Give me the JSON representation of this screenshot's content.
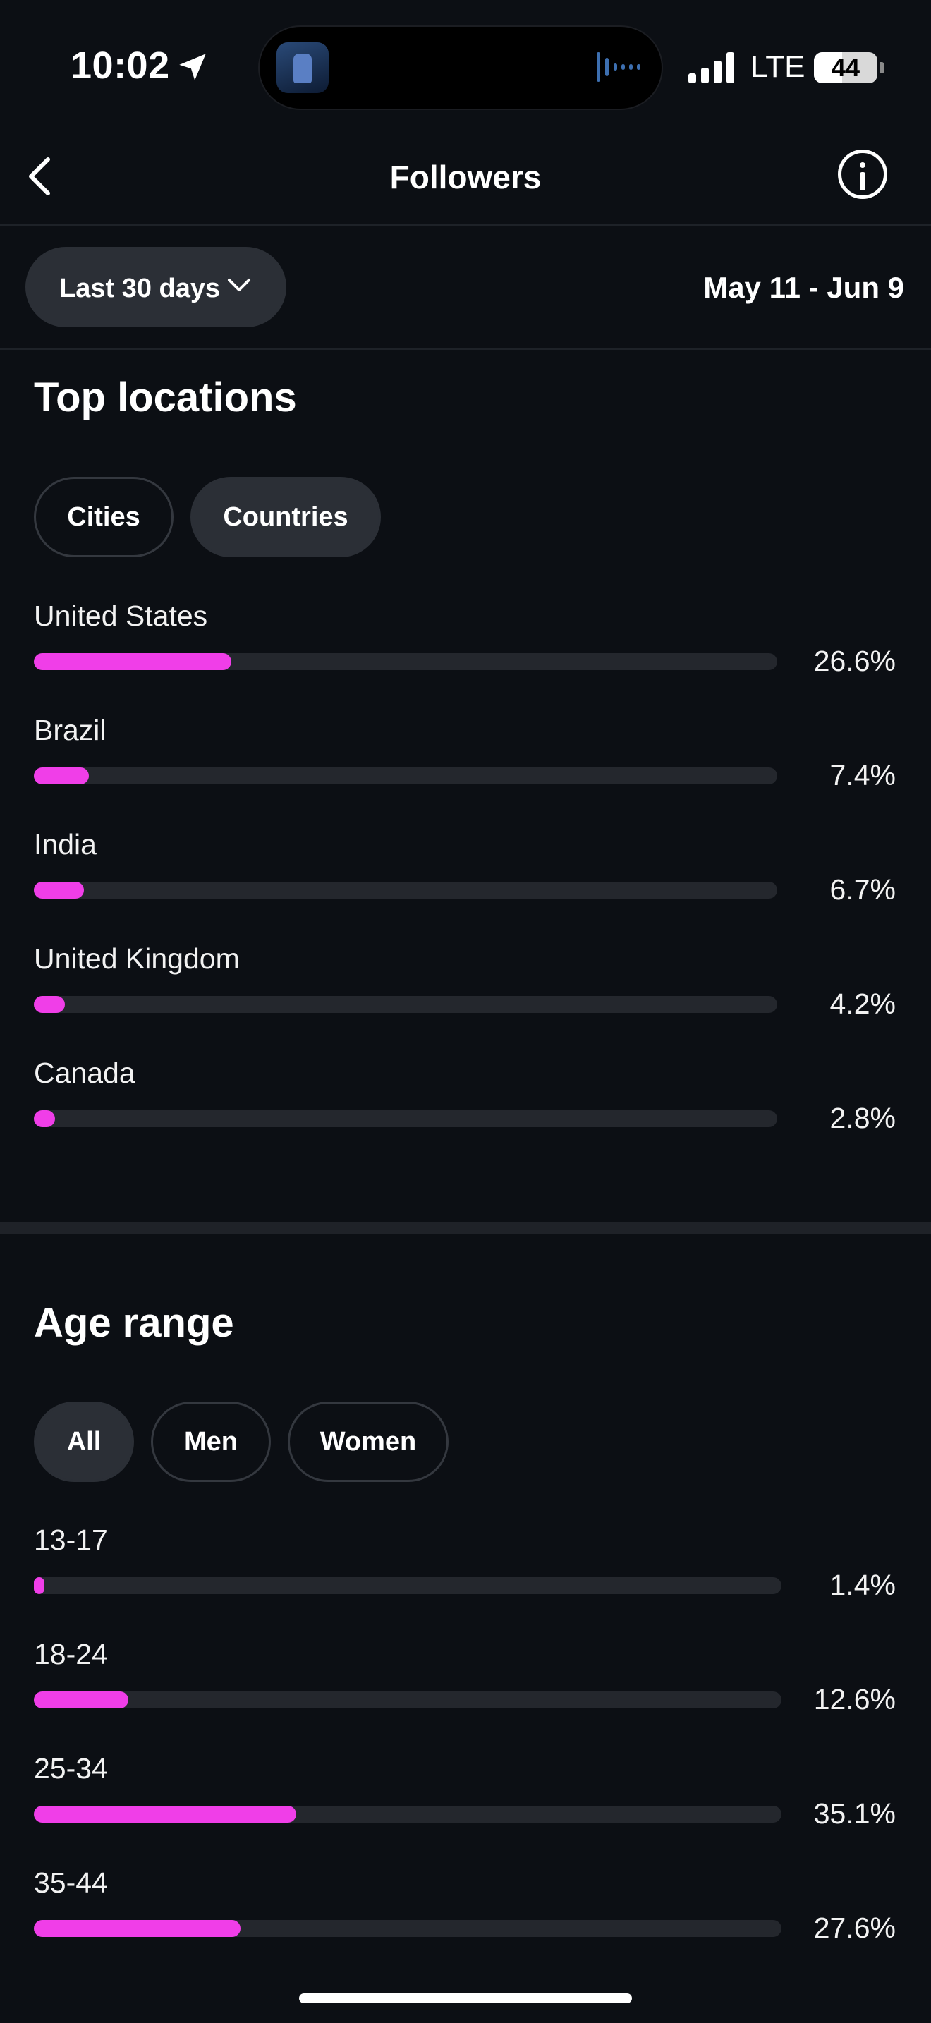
{
  "status_bar": {
    "time": "10:02",
    "network": "LTE",
    "battery": "44",
    "battery_level": 0.44
  },
  "header": {
    "title": "Followers"
  },
  "filter": {
    "range_label": "Last 30 days",
    "date_range": "May 11 - Jun 9"
  },
  "locations": {
    "title": "Top locations",
    "tabs": [
      {
        "label": "Cities",
        "active": false
      },
      {
        "label": "Countries",
        "active": true
      }
    ],
    "rows": [
      {
        "label": "United States",
        "value": "26.6%",
        "fraction": 0.266
      },
      {
        "label": "Brazil",
        "value": "7.4%",
        "fraction": 0.074
      },
      {
        "label": "India",
        "value": "6.7%",
        "fraction": 0.067
      },
      {
        "label": "United Kingdom",
        "value": "4.2%",
        "fraction": 0.042
      },
      {
        "label": "Canada",
        "value": "2.8%",
        "fraction": 0.028
      }
    ]
  },
  "age": {
    "title": "Age range",
    "tabs": [
      {
        "label": "All",
        "active": true
      },
      {
        "label": "Men",
        "active": false
      },
      {
        "label": "Women",
        "active": false
      }
    ],
    "rows": [
      {
        "label": "13-17",
        "value": "1.4%",
        "fraction": 0.014
      },
      {
        "label": "18-24",
        "value": "12.6%",
        "fraction": 0.126
      },
      {
        "label": "25-34",
        "value": "35.1%",
        "fraction": 0.351
      },
      {
        "label": "35-44",
        "value": "27.6%",
        "fraction": 0.276
      }
    ]
  },
  "colors": {
    "accent": "#f03ee8",
    "background": "#0c0f14",
    "track": "#24272d",
    "chip_active": "#2b2f36"
  },
  "icons": {
    "back": "chevron-left-icon",
    "info": "info-icon",
    "dropdown": "chevron-down-icon",
    "location": "location-arrow-icon"
  }
}
